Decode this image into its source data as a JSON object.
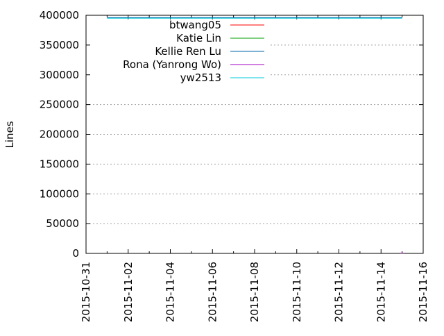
{
  "chart_data": {
    "type": "line",
    "title": "",
    "xlabel": "",
    "ylabel": "Lines",
    "xlim": [
      "2015-10-31",
      "2015-11-16"
    ],
    "ylim": [
      0,
      400000
    ],
    "x_ticks": [
      "2015-10-31",
      "2015-11-02",
      "2015-11-04",
      "2015-11-06",
      "2015-11-08",
      "2015-11-10",
      "2015-11-12",
      "2015-11-14",
      "2015-11-16"
    ],
    "y_ticks": [
      0,
      50000,
      100000,
      150000,
      200000,
      250000,
      300000,
      350000,
      400000
    ],
    "y_tick_labels": [
      "0",
      "50000",
      "100000",
      "150000",
      "200000",
      "250000",
      "300000",
      "350000",
      "400000"
    ],
    "grid": true,
    "legend_position": "top-left",
    "series": [
      {
        "name": "btwang05",
        "color": "#ff0000",
        "x": [
          "2015-11-15"
        ],
        "y": [
          100
        ]
      },
      {
        "name": "Katie Lin",
        "color": "#00a000",
        "x": [
          "2015-11-15"
        ],
        "y": [
          100
        ]
      },
      {
        "name": "Kellie Ren Lu",
        "color": "#0066aa",
        "x": [
          "2015-11-01",
          "2015-11-15"
        ],
        "y": [
          396000,
          396000
        ]
      },
      {
        "name": "Rona (Yanrong Wo)",
        "color": "#a000c0",
        "x": [
          "2015-11-15"
        ],
        "y": [
          500
        ]
      },
      {
        "name": "yw2513",
        "color": "#00c8d8",
        "x": [
          "2015-11-01",
          "2015-11-15"
        ],
        "y": [
          395000,
          395000
        ]
      }
    ]
  }
}
